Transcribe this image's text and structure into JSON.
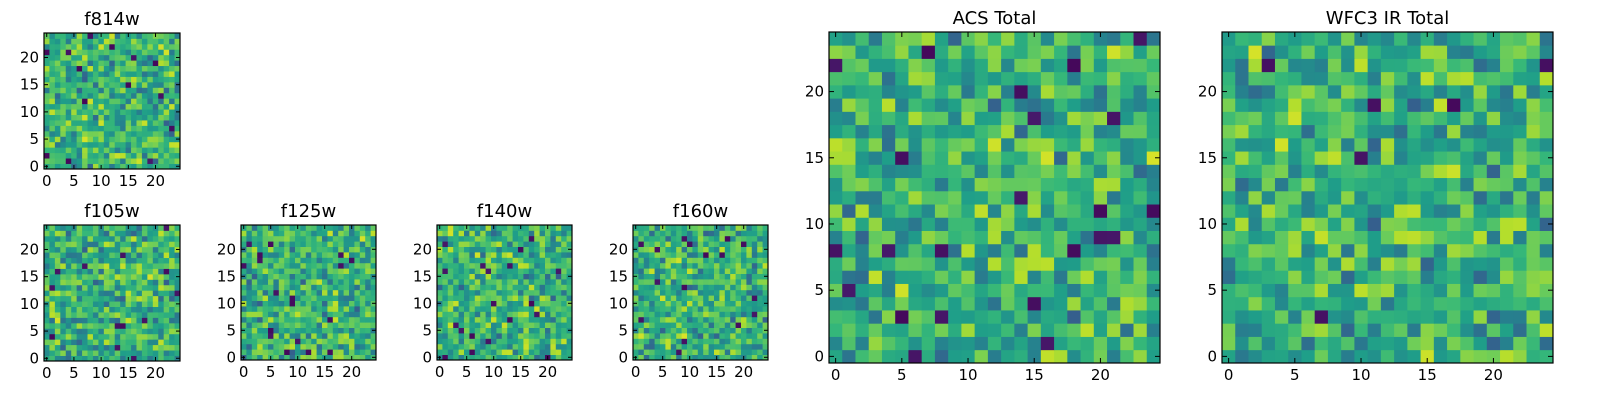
{
  "chart_data": [
    {
      "type": "heatmap",
      "title": "f814w",
      "xlabel": "",
      "ylabel": "",
      "xlim": [
        0,
        24
      ],
      "ylim": [
        0,
        24
      ],
      "grid_size": 25,
      "xticks": [
        0,
        5,
        10,
        15,
        20
      ],
      "yticks": [
        0,
        5,
        10,
        15,
        20
      ],
      "colormap": "viridis",
      "seed": 11
    },
    {
      "type": "heatmap",
      "title": "f105w",
      "xlabel": "",
      "ylabel": "",
      "xlim": [
        0,
        24
      ],
      "ylim": [
        0,
        24
      ],
      "grid_size": 25,
      "xticks": [
        0,
        5,
        10,
        15,
        20
      ],
      "yticks": [
        0,
        5,
        10,
        15,
        20
      ],
      "colormap": "viridis",
      "seed": 23
    },
    {
      "type": "heatmap",
      "title": "f125w",
      "xlabel": "",
      "ylabel": "",
      "xlim": [
        0,
        24
      ],
      "ylim": [
        0,
        24
      ],
      "grid_size": 25,
      "xticks": [
        0,
        5,
        10,
        15,
        20
      ],
      "yticks": [
        0,
        5,
        10,
        15,
        20
      ],
      "colormap": "viridis",
      "seed": 37
    },
    {
      "type": "heatmap",
      "title": "f140w",
      "xlabel": "",
      "ylabel": "",
      "xlim": [
        0,
        24
      ],
      "ylim": [
        0,
        24
      ],
      "grid_size": 25,
      "xticks": [
        0,
        5,
        10,
        15,
        20
      ],
      "yticks": [
        0,
        5,
        10,
        15,
        20
      ],
      "colormap": "viridis",
      "seed": 41
    },
    {
      "type": "heatmap",
      "title": "f160w",
      "xlabel": "",
      "ylabel": "",
      "xlim": [
        0,
        24
      ],
      "ylim": [
        0,
        24
      ],
      "grid_size": 25,
      "xticks": [
        0,
        5,
        10,
        15,
        20
      ],
      "yticks": [
        0,
        5,
        10,
        15,
        20
      ],
      "colormap": "viridis",
      "seed": 53
    },
    {
      "type": "heatmap",
      "title": "ACS Total",
      "xlabel": "",
      "ylabel": "",
      "xlim": [
        0,
        24
      ],
      "ylim": [
        0,
        24
      ],
      "grid_size": 25,
      "xticks": [
        0,
        5,
        10,
        15,
        20
      ],
      "yticks": [
        0,
        5,
        10,
        15,
        20
      ],
      "colormap": "viridis",
      "seed": 67
    },
    {
      "type": "heatmap",
      "title": "WFC3 IR Total",
      "xlabel": "",
      "ylabel": "",
      "xlim": [
        0,
        24
      ],
      "ylim": [
        0,
        24
      ],
      "grid_size": 25,
      "xticks": [
        0,
        5,
        10,
        15,
        20
      ],
      "yticks": [
        0,
        5,
        10,
        15,
        20
      ],
      "colormap": "viridis",
      "seed": 79
    }
  ]
}
